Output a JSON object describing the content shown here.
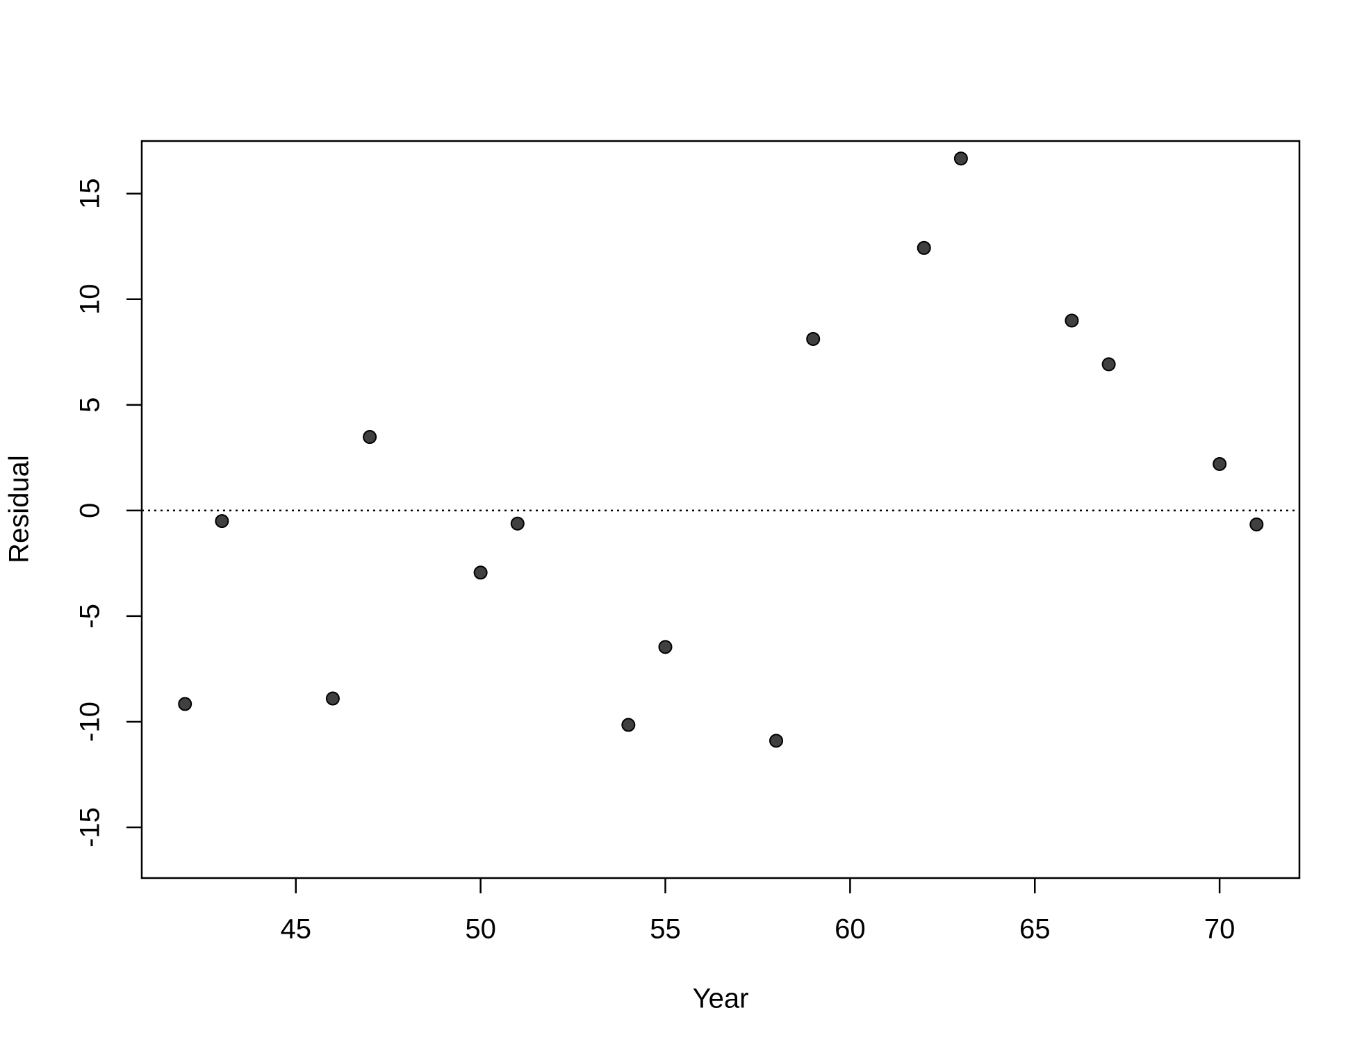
{
  "chart_data": {
    "type": "scatter",
    "x_label": "Year",
    "y_label": "Residual",
    "x": [
      42,
      43,
      46,
      47,
      50,
      51,
      54,
      55,
      58,
      59,
      62,
      63,
      66,
      67,
      70,
      71
    ],
    "series": [
      {
        "color": "#404040",
        "values": [
          -9.16,
          -0.5,
          -8.9,
          3.48,
          -2.94,
          -0.62,
          -10.15,
          -6.46,
          -10.9,
          8.12,
          12.43,
          16.66,
          8.99,
          6.92,
          2.2,
          -0.66
        ]
      }
    ],
    "reference_line": 0,
    "xlim": [
      40.83,
      72.16
    ],
    "ylim": [
      -17.4,
      17.49
    ],
    "xticks": [
      45,
      50,
      55,
      60,
      65,
      70
    ],
    "yticks": [
      -15,
      -10,
      -5,
      0,
      5,
      10,
      15
    ]
  }
}
